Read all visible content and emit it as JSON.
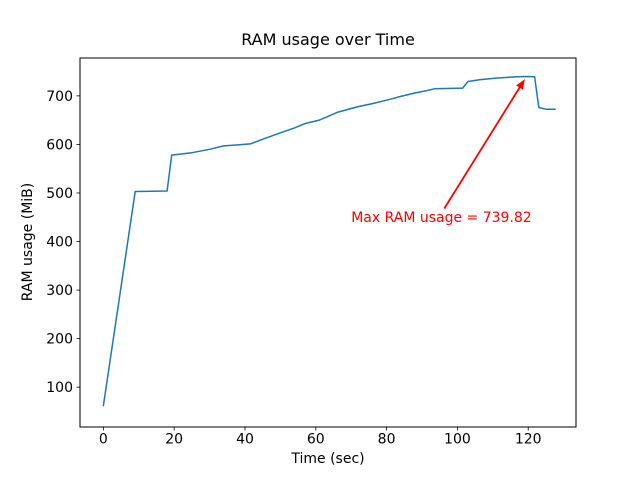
{
  "figure": {
    "background": "#ffffff"
  },
  "chart_data": {
    "type": "line",
    "title": "RAM usage over Time",
    "xlabel": "Time (sec)",
    "ylabel": "RAM usage (MiB)",
    "xlim": [
      -6.6,
      133.5
    ],
    "ylim": [
      18,
      778
    ],
    "xticks": [
      0,
      20,
      40,
      60,
      80,
      100,
      120
    ],
    "yticks": [
      100,
      200,
      300,
      400,
      500,
      600,
      700
    ],
    "grid": false,
    "legend": false,
    "axis_color": "#000000",
    "text_color": "#000000",
    "series": [
      {
        "name": "RAM usage",
        "color": "#1f77b4",
        "x": [
          0,
          9,
          18,
          19.3,
          25,
          30,
          34,
          38,
          41.5,
          45.5,
          50,
          54,
          57,
          61,
          63.5,
          66,
          69.5,
          72,
          76,
          81.5,
          84,
          88,
          91.5,
          93.5,
          101.5,
          103,
          106.5,
          111,
          116.5,
          119.5,
          121.8,
          123,
          125,
          127.6
        ],
        "y": [
          62,
          503,
          504,
          578,
          583,
          590,
          597,
          599,
          601,
          612,
          624,
          634,
          643,
          650,
          658,
          666,
          673,
          678,
          684,
          694,
          699,
          706,
          711,
          714.5,
          716,
          729.5,
          733.5,
          736.5,
          739.3,
          739.82,
          739.4,
          676,
          672.5,
          672.5
        ]
      }
    ],
    "annotation": {
      "text": "Max RAM usage = 739.82",
      "max_value": 739.82,
      "color": "#ff0000",
      "arrow_tip_data": [
        119.5,
        739.82
      ],
      "arrow_tail_data": [
        96.3,
        468
      ],
      "text_pos_data": [
        70,
        440
      ]
    }
  }
}
